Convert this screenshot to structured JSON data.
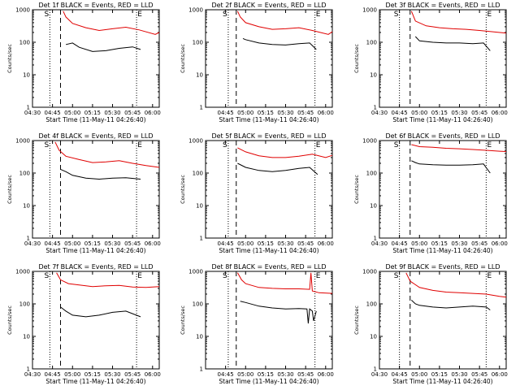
{
  "figure": {
    "title_suffix": "BLACK = Events, RED = LLD",
    "xlabel": "Start Time (11-May-11 04:26:40)",
    "ylabel": "Counts/sec",
    "yticks": [
      "1",
      "10",
      "100",
      "1000"
    ],
    "ylim": [
      1,
      1000
    ],
    "yscale": "log",
    "xlim": [
      "04:30",
      "06:05"
    ],
    "marker_start": "S",
    "marker_end": "E",
    "colors": {
      "events": "#000000",
      "lld": "#e00000",
      "axes": "#000000"
    }
  },
  "chart_data": [
    {
      "type": "line",
      "title": "Det 1f BLACK = Events, RED = LLD",
      "xticks": [
        "04:30",
        "04:45",
        "05:00",
        "05:15",
        "05:30",
        "05:45",
        "06:00"
      ],
      "markers": {
        "dotted": [
          "04:43",
          "05:48"
        ],
        "dashed": "04:51"
      },
      "series": [
        {
          "name": "LLD",
          "points": [
            [
              "04:53",
              900
            ],
            [
              "04:55",
              600
            ],
            [
              "05:00",
              380
            ],
            [
              "05:10",
              280
            ],
            [
              "05:20",
              230
            ],
            [
              "05:30",
              260
            ],
            [
              "05:40",
              290
            ],
            [
              "05:50",
              240
            ],
            [
              "06:02",
              175
            ],
            [
              "06:05",
              200
            ]
          ]
        },
        {
          "name": "Events",
          "points": [
            [
              "04:55",
              85
            ],
            [
              "05:00",
              95
            ],
            [
              "05:05",
              70
            ],
            [
              "05:15",
              52
            ],
            [
              "05:25",
              55
            ],
            [
              "05:35",
              65
            ],
            [
              "05:45",
              72
            ],
            [
              "05:51",
              60
            ]
          ]
        }
      ]
    },
    {
      "type": "line",
      "title": "Det 2f BLACK = Events, RED = LLD",
      "xticks": [
        "04:45",
        "05:00",
        "05:15",
        "05:30",
        "05:45",
        "06:00"
      ],
      "markers": {
        "dotted": [
          "04:47",
          "05:52"
        ],
        "dashed": "04:53"
      },
      "series": [
        {
          "name": "LLD",
          "points": [
            [
              "04:54",
              900
            ],
            [
              "04:56",
              600
            ],
            [
              "05:00",
              400
            ],
            [
              "05:10",
              300
            ],
            [
              "05:20",
              250
            ],
            [
              "05:30",
              260
            ],
            [
              "05:40",
              280
            ],
            [
              "05:50",
              230
            ],
            [
              "06:02",
              175
            ],
            [
              "06:05",
              210
            ]
          ]
        },
        {
          "name": "Events",
          "points": [
            [
              "04:58",
              130
            ],
            [
              "05:00",
              120
            ],
            [
              "05:10",
              95
            ],
            [
              "05:20",
              85
            ],
            [
              "05:30",
              82
            ],
            [
              "05:40",
              90
            ],
            [
              "05:48",
              95
            ],
            [
              "05:53",
              60
            ]
          ]
        }
      ]
    },
    {
      "type": "line",
      "title": "Det 3f BLACK = Events, RED = LLD",
      "xticks": [
        "04:30",
        "04:45",
        "05:00",
        "05:15",
        "05:30",
        "05:45",
        "06:00"
      ],
      "markers": {
        "dotted": [
          "04:45",
          "05:50"
        ],
        "dashed": "04:53"
      },
      "series": [
        {
          "name": "LLD",
          "points": [
            [
              "04:54",
              900
            ],
            [
              "04:57",
              450
            ],
            [
              "05:05",
              320
            ],
            [
              "05:15",
              280
            ],
            [
              "05:25",
              260
            ],
            [
              "05:35",
              250
            ],
            [
              "05:45",
              230
            ],
            [
              "05:55",
              210
            ],
            [
              "06:05",
              190
            ]
          ]
        },
        {
          "name": "Events",
          "points": [
            [
              "04:57",
              150
            ],
            [
              "05:00",
              110
            ],
            [
              "05:10",
              100
            ],
            [
              "05:20",
              95
            ],
            [
              "05:30",
              95
            ],
            [
              "05:40",
              90
            ],
            [
              "05:48",
              95
            ],
            [
              "05:53",
              55
            ]
          ]
        }
      ]
    },
    {
      "type": "line",
      "title": "Det 4f BLACK = Events, RED = LLD",
      "xticks": [
        "04:30",
        "04:45",
        "05:00",
        "05:15",
        "05:30",
        "05:45",
        "06:00"
      ],
      "markers": {
        "dotted": [
          "04:43",
          "05:48"
        ],
        "dashed": "04:51"
      },
      "series": [
        {
          "name": "LLD",
          "points": [
            [
              "04:47",
              900
            ],
            [
              "04:50",
              500
            ],
            [
              "04:55",
              330
            ],
            [
              "05:05",
              260
            ],
            [
              "05:15",
              210
            ],
            [
              "05:25",
              220
            ],
            [
              "05:35",
              240
            ],
            [
              "05:45",
              200
            ],
            [
              "05:55",
              170
            ],
            [
              "06:05",
              150
            ]
          ]
        },
        {
          "name": "Events",
          "points": [
            [
              "04:51",
              130
            ],
            [
              "04:55",
              110
            ],
            [
              "05:00",
              85
            ],
            [
              "05:10",
              70
            ],
            [
              "05:20",
              65
            ],
            [
              "05:30",
              70
            ],
            [
              "05:40",
              72
            ],
            [
              "05:51",
              65
            ]
          ]
        }
      ]
    },
    {
      "type": "line",
      "title": "Det 5f BLACK = Events, RED = LLD",
      "xticks": [
        "04:45",
        "05:00",
        "05:15",
        "05:30",
        "05:45",
        "06:00"
      ],
      "markers": {
        "dotted": [
          "04:47",
          "05:52"
        ],
        "dashed": "04:53"
      },
      "series": [
        {
          "name": "LLD",
          "points": [
            [
              "04:54",
              600
            ],
            [
              "05:00",
              450
            ],
            [
              "05:10",
              340
            ],
            [
              "05:20",
              300
            ],
            [
              "05:30",
              300
            ],
            [
              "05:40",
              330
            ],
            [
              "05:50",
              380
            ],
            [
              "06:00",
              300
            ],
            [
              "06:05",
              350
            ]
          ]
        },
        {
          "name": "Events",
          "points": [
            [
              "04:54",
              200
            ],
            [
              "05:00",
              150
            ],
            [
              "05:10",
              120
            ],
            [
              "05:20",
              110
            ],
            [
              "05:30",
              120
            ],
            [
              "05:40",
              140
            ],
            [
              "05:48",
              150
            ],
            [
              "05:54",
              90
            ]
          ]
        }
      ]
    },
    {
      "type": "line",
      "title": "Det 6f BLACK = Events, RED = LLD",
      "xticks": [
        "04:30",
        "04:45",
        "05:00",
        "05:15",
        "05:30",
        "05:45",
        "06:00"
      ],
      "markers": {
        "dotted": [
          "04:45",
          "05:50"
        ],
        "dashed": "04:53"
      },
      "series": [
        {
          "name": "LLD",
          "points": [
            [
              "04:54",
              750
            ],
            [
              "05:00",
              650
            ],
            [
              "05:10",
              620
            ],
            [
              "05:20",
              580
            ],
            [
              "05:30",
              560
            ],
            [
              "05:40",
              530
            ],
            [
              "05:50",
              500
            ],
            [
              "06:00",
              470
            ],
            [
              "06:05",
              460
            ]
          ]
        },
        {
          "name": "Events",
          "points": [
            [
              "04:54",
              240
            ],
            [
              "04:57",
              210
            ],
            [
              "05:00",
              190
            ],
            [
              "05:10",
              180
            ],
            [
              "05:20",
              175
            ],
            [
              "05:30",
              175
            ],
            [
              "05:40",
              180
            ],
            [
              "05:48",
              190
            ],
            [
              "05:53",
              100
            ]
          ]
        }
      ]
    },
    {
      "type": "line",
      "title": "Det 7f BLACK = Events, RED = LLD",
      "xticks": [
        "04:30",
        "04:45",
        "05:00",
        "05:15",
        "05:30",
        "05:45",
        "06:00"
      ],
      "markers": {
        "dotted": [
          "04:43",
          "05:48"
        ],
        "dashed": "04:51"
      },
      "series": [
        {
          "name": "LLD",
          "points": [
            [
              "04:48",
              900
            ],
            [
              "04:51",
              550
            ],
            [
              "04:57",
              420
            ],
            [
              "05:05",
              380
            ],
            [
              "05:15",
              340
            ],
            [
              "05:25",
              360
            ],
            [
              "05:35",
              370
            ],
            [
              "05:45",
              330
            ],
            [
              "05:55",
              320
            ],
            [
              "06:05",
              340
            ]
          ]
        },
        {
          "name": "Events",
          "points": [
            [
              "04:51",
              80
            ],
            [
              "04:55",
              60
            ],
            [
              "05:00",
              45
            ],
            [
              "05:10",
              40
            ],
            [
              "05:20",
              45
            ],
            [
              "05:30",
              55
            ],
            [
              "05:40",
              60
            ],
            [
              "05:51",
              40
            ]
          ]
        }
      ]
    },
    {
      "type": "line",
      "title": "Det 8f BLACK = Events, RED = LLD",
      "xticks": [
        "04:45",
        "05:00",
        "05:15",
        "05:30",
        "05:45",
        "06:00"
      ],
      "markers": {
        "dotted": [
          "04:47",
          "05:52"
        ],
        "dashed": "04:53"
      },
      "series": [
        {
          "name": "LLD",
          "points": [
            [
              "04:54",
              900
            ],
            [
              "04:57",
              550
            ],
            [
              "05:00",
              420
            ],
            [
              "05:10",
              320
            ],
            [
              "05:20",
              300
            ],
            [
              "05:30",
              290
            ],
            [
              "05:40",
              290
            ],
            [
              "05:48",
              280
            ],
            [
              "05:49",
              900
            ],
            [
              "05:50",
              250
            ],
            [
              "05:55",
              220
            ],
            [
              "06:05",
              210
            ]
          ]
        },
        {
          "name": "Events",
          "points": [
            [
              "04:56",
              120
            ],
            [
              "05:00",
              110
            ],
            [
              "05:10",
              85
            ],
            [
              "05:20",
              75
            ],
            [
              "05:30",
              70
            ],
            [
              "05:40",
              72
            ],
            [
              "05:46",
              70
            ],
            [
              "05:47",
              25
            ],
            [
              "05:48",
              70
            ],
            [
              "05:50",
              60
            ],
            [
              "05:51",
              30
            ],
            [
              "05:53",
              60
            ]
          ]
        }
      ]
    },
    {
      "type": "line",
      "title": "Det 9f BLACK = Events, RED = LLD",
      "xticks": [
        "04:30",
        "04:45",
        "05:00",
        "05:15",
        "05:30",
        "05:45",
        "06:00"
      ],
      "markers": {
        "dotted": [
          "04:45",
          "05:50"
        ],
        "dashed": "04:53"
      },
      "series": [
        {
          "name": "LLD",
          "points": [
            [
              "04:50",
              900
            ],
            [
              "04:53",
              500
            ],
            [
              "05:00",
              320
            ],
            [
              "05:10",
              260
            ],
            [
              "05:20",
              230
            ],
            [
              "05:30",
              220
            ],
            [
              "05:40",
              210
            ],
            [
              "05:50",
              200
            ],
            [
              "06:00",
              170
            ],
            [
              "06:05",
              160
            ]
          ]
        },
        {
          "name": "Events",
          "points": [
            [
              "04:54",
              130
            ],
            [
              "04:57",
              100
            ],
            [
              "05:00",
              90
            ],
            [
              "05:10",
              80
            ],
            [
              "05:20",
              75
            ],
            [
              "05:30",
              80
            ],
            [
              "05:40",
              85
            ],
            [
              "05:50",
              80
            ],
            [
              "05:53",
              65
            ]
          ]
        }
      ]
    }
  ]
}
